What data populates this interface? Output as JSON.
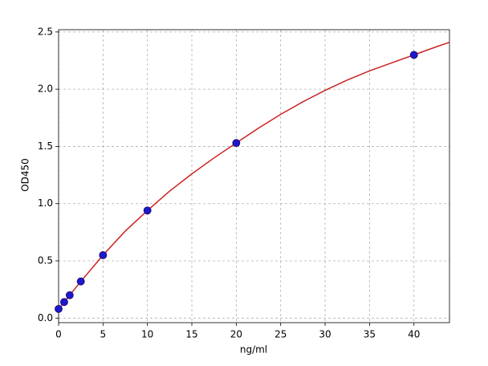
{
  "chart_data": {
    "type": "scatter",
    "x_label": "ng/ml",
    "y_label": "OD450",
    "x": [
      0,
      0.625,
      1.25,
      2.5,
      5,
      10,
      20,
      40
    ],
    "values": [
      0.08,
      0.14,
      0.2,
      0.32,
      0.55,
      0.94,
      1.53,
      2.3
    ],
    "color": "#1a1acc",
    "curve": {
      "color": "#cc2222",
      "x": [
        0,
        2.5,
        5,
        7.5,
        10,
        12.5,
        15,
        17.5,
        20,
        22.5,
        25,
        27.5,
        30,
        32.5,
        35,
        37.5,
        40,
        42.5,
        44
      ],
      "values": [
        0.08,
        0.32,
        0.55,
        0.76,
        0.94,
        1.11,
        1.26,
        1.4,
        1.53,
        1.66,
        1.78,
        1.89,
        1.99,
        2.08,
        2.16,
        2.23,
        2.3,
        2.37,
        2.41
      ]
    },
    "xlim": [
      0,
      44
    ],
    "ylim": [
      -0.04,
      2.52
    ],
    "xticks": [
      0,
      5,
      10,
      15,
      20,
      25,
      30,
      35,
      40
    ],
    "yticks": [
      {
        "value": 0,
        "label": "0.0"
      },
      0.5,
      {
        "value": 1,
        "label": "1.0"
      },
      1.5,
      {
        "value": 2,
        "label": "2.0"
      },
      2.5
    ],
    "grid": true
  }
}
